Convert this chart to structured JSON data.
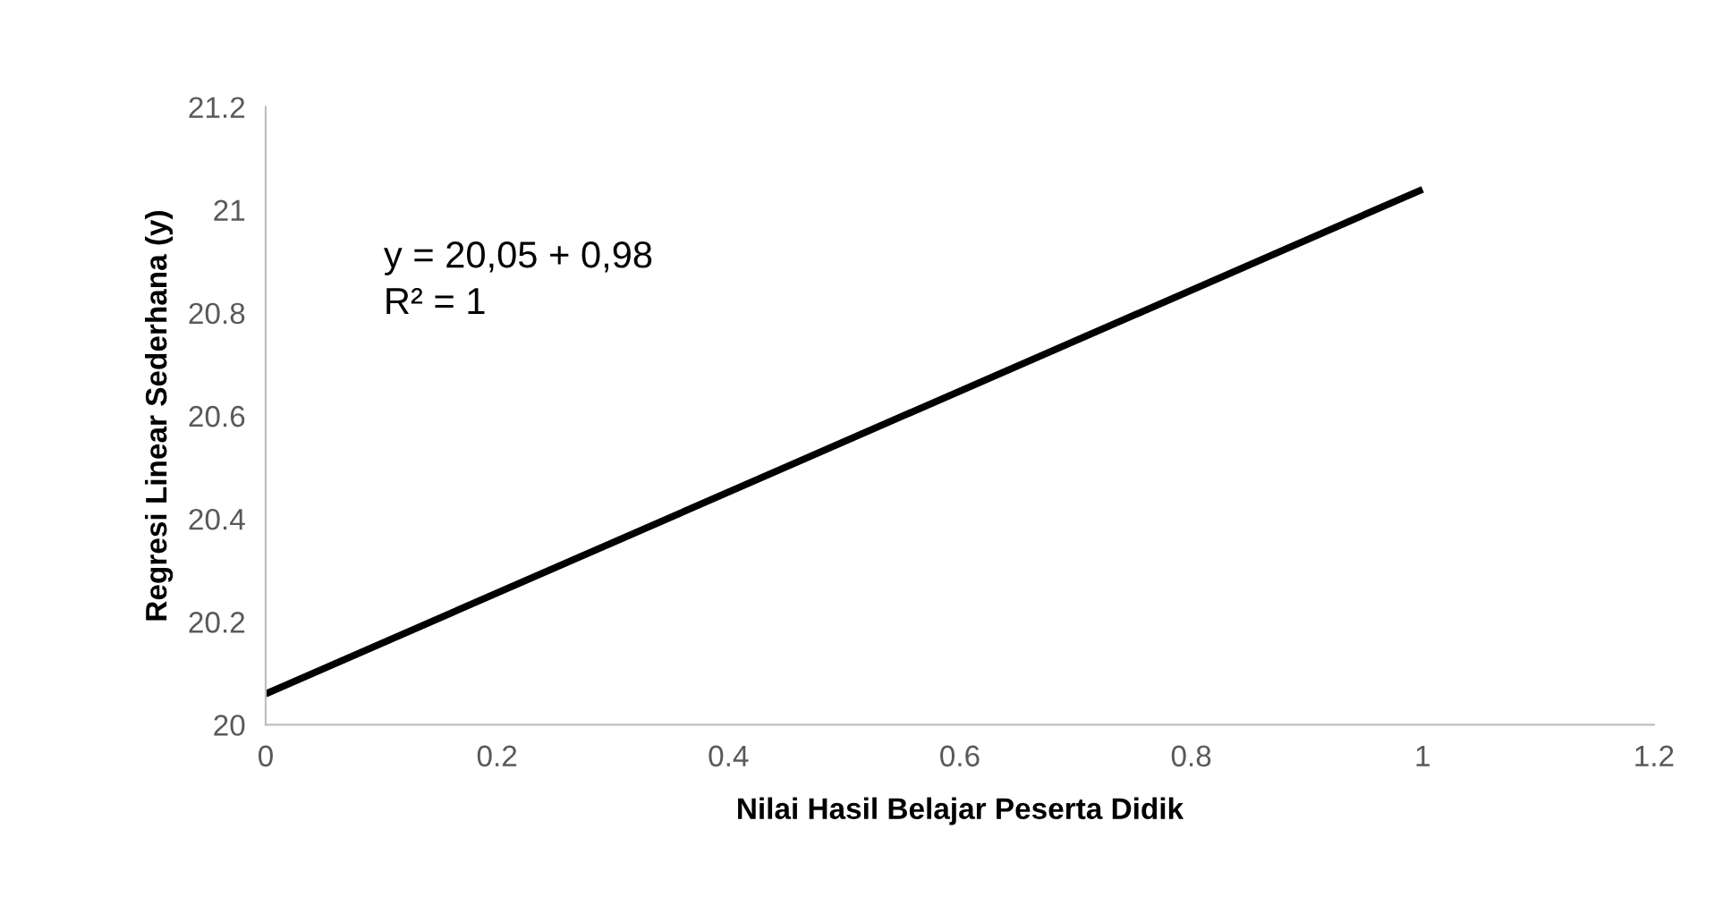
{
  "chart_data": {
    "type": "line",
    "xlabel": "Nilai Hasil Belajar Peserta Didik",
    "ylabel": "Regresi Linear Sederhana (y)",
    "annotations": [
      "y = 20,05 + 0,98",
      "R² = 1"
    ],
    "x": [
      0,
      1
    ],
    "series": [
      {
        "color": "#000000",
        "values": [
          20.06,
          21.04
        ]
      }
    ],
    "xlim": [
      0,
      1.2
    ],
    "xticks": [
      0,
      0.2,
      0.4,
      0.6,
      0.8,
      1,
      1.2
    ],
    "ylim": [
      20,
      21.2
    ],
    "yticks": [
      20,
      20.2,
      20.4,
      20.6,
      20.8,
      21,
      21.2
    ],
    "grid": false,
    "legend": false,
    "marker": "none",
    "line_style": "solid"
  }
}
